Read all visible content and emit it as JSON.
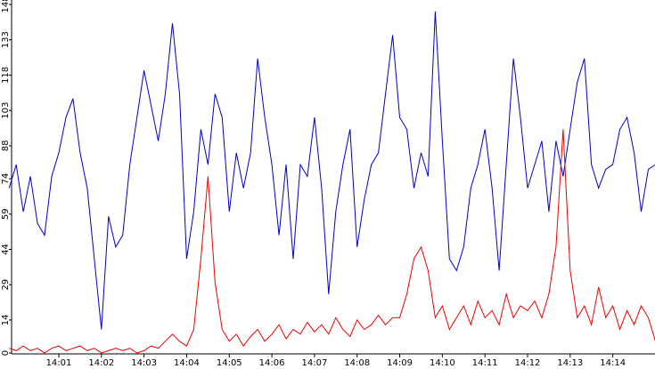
{
  "chart_data": {
    "type": "line",
    "categories": [
      null,
      null,
      null,
      null,
      null,
      null,
      null,
      "14:01",
      null,
      null,
      null,
      null,
      null,
      "14:02",
      null,
      null,
      null,
      null,
      null,
      "14:03",
      null,
      null,
      null,
      null,
      null,
      "14:04",
      null,
      null,
      null,
      null,
      null,
      "14:05",
      null,
      null,
      null,
      null,
      null,
      "14:06",
      null,
      null,
      null,
      null,
      null,
      "14:07",
      null,
      null,
      null,
      null,
      null,
      "14:08",
      null,
      null,
      null,
      null,
      null,
      "14:09",
      null,
      null,
      null,
      null,
      null,
      "14:10",
      null,
      null,
      null,
      null,
      null,
      "14:11",
      null,
      null,
      null,
      null,
      null,
      "14:12",
      null,
      null,
      null,
      null,
      null,
      "14:13",
      null,
      null,
      null,
      null,
      null,
      "14:14",
      null,
      null,
      null,
      null,
      null,
      null
    ],
    "series": [
      {
        "color": "#0000cc",
        "values": [
          70,
          80,
          60,
          75,
          55,
          50,
          75,
          85,
          100,
          108,
          85,
          70,
          40,
          10,
          58,
          45,
          50,
          80,
          100,
          120,
          105,
          90,
          110,
          140,
          110,
          40,
          60,
          95,
          80,
          110,
          100,
          60,
          85,
          70,
          85,
          125,
          100,
          80,
          50,
          80,
          40,
          80,
          75,
          100,
          70,
          25,
          60,
          80,
          95,
          45,
          65,
          80,
          85,
          110,
          135,
          100,
          95,
          70,
          85,
          75,
          145,
          90,
          40,
          35,
          45,
          70,
          80,
          95,
          70,
          35,
          80,
          125,
          100,
          70,
          80,
          90,
          60,
          90,
          75,
          95,
          115,
          125,
          80,
          70,
          78,
          80,
          95,
          100,
          85,
          60,
          78,
          80
        ]
      },
      {
        "color": "#ee0000",
        "values": [
          2,
          1,
          3,
          1,
          2,
          0,
          2,
          3,
          1,
          2,
          3,
          1,
          2,
          0,
          1,
          2,
          1,
          2,
          0,
          1,
          3,
          2,
          5,
          8,
          5,
          3,
          10,
          40,
          75,
          30,
          10,
          5,
          8,
          3,
          7,
          10,
          5,
          8,
          12,
          6,
          10,
          8,
          13,
          9,
          12,
          8,
          15,
          10,
          7,
          14,
          10,
          12,
          16,
          12,
          15,
          15,
          25,
          40,
          45,
          35,
          15,
          20,
          10,
          15,
          20,
          12,
          22,
          15,
          18,
          12,
          25,
          15,
          20,
          18,
          22,
          15,
          25,
          45,
          95,
          35,
          15,
          20,
          12,
          28,
          15,
          20,
          10,
          18,
          12,
          20,
          15,
          5
        ]
      }
    ],
    "ylim": [
      0,
      148
    ],
    "yticks": [
      0,
      14,
      29,
      44,
      59,
      74,
      88,
      103,
      118,
      133,
      148
    ]
  }
}
